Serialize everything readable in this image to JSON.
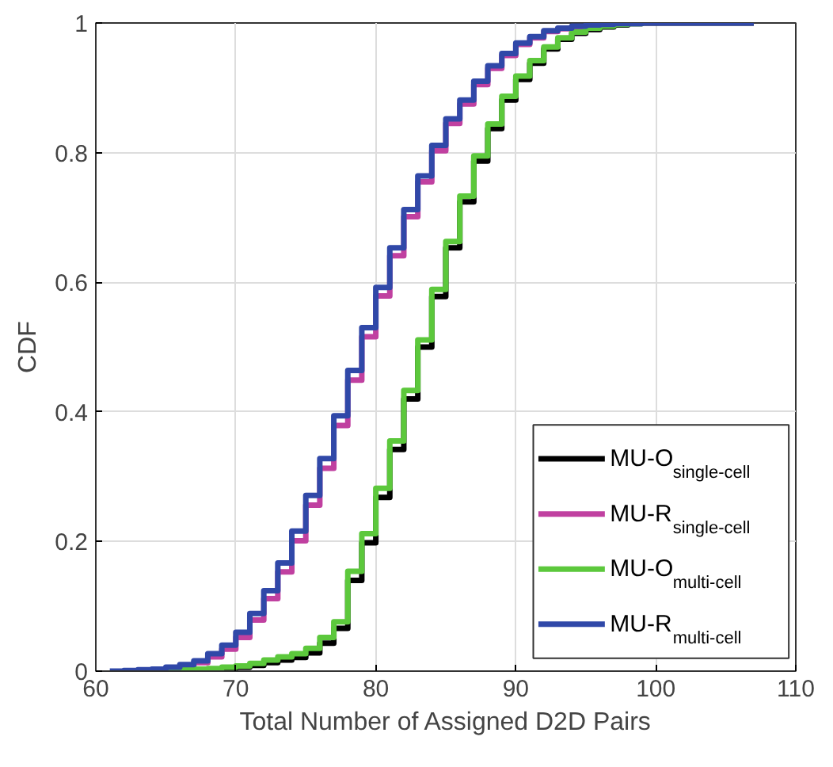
{
  "chart_data": {
    "type": "step",
    "xlabel": "Total Number of Assigned D2D Pairs",
    "ylabel": "CDF",
    "xlim": [
      60,
      110
    ],
    "ylim": [
      0,
      1
    ],
    "xticks": [
      60,
      70,
      80,
      90,
      100,
      110
    ],
    "yticks": [
      0,
      {
        "value": 0.2,
        "label": "0.2"
      },
      {
        "value": 0.4,
        "label": "0.4"
      },
      {
        "value": 0.6,
        "label": "0.6"
      },
      {
        "value": 0.8,
        "label": "0.8"
      },
      1
    ],
    "grid": true,
    "legend": "bottom right",
    "series": [
      {
        "name": "MU-O$_{single-cell}$",
        "color": "#000000",
        "x": [
          65,
          66,
          67,
          68,
          69,
          70,
          71,
          72,
          73,
          74,
          75,
          76,
          77,
          78,
          79,
          80,
          81,
          82,
          83,
          84,
          85,
          86,
          87,
          88,
          89,
          90,
          91,
          92,
          93,
          94,
          95,
          96,
          97,
          98,
          99,
          100,
          107
        ],
        "values": [
          0,
          0.001,
          0.002,
          0.003,
          0.004,
          0.006,
          0.009,
          0.013,
          0.017,
          0.021,
          0.028,
          0.043,
          0.066,
          0.14,
          0.198,
          0.268,
          0.342,
          0.42,
          0.5,
          0.578,
          0.653,
          0.724,
          0.787,
          0.837,
          0.881,
          0.913,
          0.938,
          0.96,
          0.975,
          0.984,
          0.99,
          0.994,
          0.997,
          0.999,
          1,
          1,
          1
        ]
      },
      {
        "name": "MU-R$_{single-cell}$",
        "color": "#c040a0",
        "x": [
          66,
          67,
          68,
          69,
          70,
          71,
          72,
          73,
          74,
          75,
          76,
          77,
          78,
          79,
          80,
          81,
          82,
          83,
          84,
          85,
          86,
          87,
          88,
          89,
          90,
          91,
          92,
          93,
          94,
          95
        ],
        "values": [
          0.008,
          0.013,
          0.022,
          0.034,
          0.052,
          0.079,
          0.112,
          0.153,
          0.201,
          0.256,
          0.313,
          0.379,
          0.449,
          0.516,
          0.579,
          0.641,
          0.701,
          0.755,
          0.803,
          0.845,
          0.875,
          0.905,
          0.93,
          0.95,
          0.967,
          0.977,
          0.987,
          0.991,
          0.994,
          0.996
        ]
      },
      {
        "name": "MU-O$_{multi-cell}$",
        "color": "#5cc83c",
        "x": [
          65,
          66,
          67,
          68,
          69,
          70,
          71,
          72,
          73,
          74,
          75,
          76,
          77,
          78,
          79,
          80,
          81,
          82,
          83,
          84,
          85,
          86,
          87,
          88,
          89,
          90,
          91,
          92,
          93,
          94,
          95,
          96,
          97,
          98,
          99
        ],
        "values": [
          0.001,
          0.002,
          0.003,
          0.004,
          0.006,
          0.008,
          0.012,
          0.017,
          0.022,
          0.027,
          0.035,
          0.052,
          0.076,
          0.154,
          0.212,
          0.282,
          0.355,
          0.433,
          0.511,
          0.589,
          0.663,
          0.733,
          0.795,
          0.844,
          0.887,
          0.918,
          0.942,
          0.963,
          0.977,
          0.986,
          0.992,
          0.995,
          0.998,
          0.999,
          1
        ]
      },
      {
        "name": "MU-R$_{multi-cell}$",
        "color": "#3048a8",
        "x": [
          61,
          62,
          63,
          64,
          65,
          66,
          67,
          68,
          69,
          70,
          71,
          72,
          73,
          74,
          75,
          76,
          77,
          78,
          79,
          80,
          81,
          82,
          83,
          84,
          85,
          86,
          87,
          88,
          89,
          90,
          91,
          92,
          93,
          94,
          95,
          96,
          97,
          98,
          99,
          100,
          107
        ],
        "values": [
          0,
          0.001,
          0.002,
          0.003,
          0.006,
          0.01,
          0.016,
          0.027,
          0.04,
          0.06,
          0.089,
          0.124,
          0.167,
          0.216,
          0.271,
          0.328,
          0.394,
          0.464,
          0.53,
          0.592,
          0.653,
          0.712,
          0.764,
          0.811,
          0.852,
          0.881,
          0.91,
          0.934,
          0.953,
          0.969,
          0.979,
          0.988,
          0.992,
          0.995,
          0.997,
          0.998,
          0.999,
          0.999,
          1,
          1,
          1
        ]
      }
    ]
  }
}
